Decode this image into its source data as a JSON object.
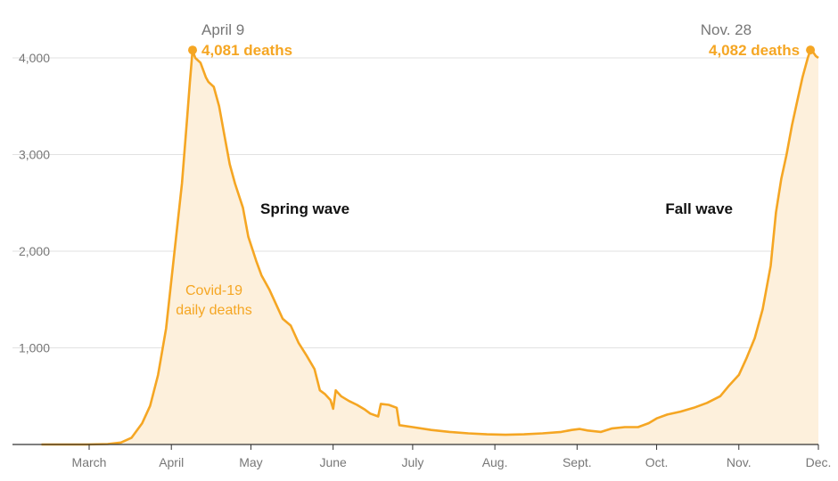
{
  "chart_data": {
    "type": "area",
    "title": "",
    "xlabel": "",
    "ylabel": "",
    "ylim": [
      0,
      4300
    ],
    "grid": true,
    "colors": {
      "line": "#f5a623",
      "fill": "#fdf0dc",
      "baseline": "#333333"
    },
    "y_ticks": [
      {
        "value": 1000,
        "label": "1,000"
      },
      {
        "value": 2000,
        "label": "2,000"
      },
      {
        "value": 3000,
        "label": "3,000"
      },
      {
        "value": 4000,
        "label": "4,000"
      }
    ],
    "x_ticks": [
      {
        "date": "2020-03-01",
        "label": "March"
      },
      {
        "date": "2020-04-01",
        "label": "April"
      },
      {
        "date": "2020-05-01",
        "label": "May"
      },
      {
        "date": "2020-06-01",
        "label": "June"
      },
      {
        "date": "2020-07-01",
        "label": "July"
      },
      {
        "date": "2020-08-01",
        "label": "Aug."
      },
      {
        "date": "2020-09-01",
        "label": "Sept."
      },
      {
        "date": "2020-10-01",
        "label": "Oct."
      },
      {
        "date": "2020-11-01",
        "label": "Nov."
      },
      {
        "date": "2020-12-01",
        "label": "Dec."
      }
    ],
    "series": [
      {
        "name": "Covid-19 daily deaths",
        "points": [
          [
            "2020-02-12",
            0
          ],
          [
            "2020-02-29",
            0
          ],
          [
            "2020-03-08",
            5
          ],
          [
            "2020-03-13",
            20
          ],
          [
            "2020-03-17",
            70
          ],
          [
            "2020-03-21",
            220
          ],
          [
            "2020-03-24",
            400
          ],
          [
            "2020-03-27",
            720
          ],
          [
            "2020-03-30",
            1200
          ],
          [
            "2020-04-02",
            1950
          ],
          [
            "2020-04-05",
            2700
          ],
          [
            "2020-04-07",
            3400
          ],
          [
            "2020-04-08",
            3750
          ],
          [
            "2020-04-09",
            4081
          ],
          [
            "2020-04-10",
            4000
          ],
          [
            "2020-04-12",
            3950
          ],
          [
            "2020-04-14",
            3800
          ],
          [
            "2020-04-15",
            3750
          ],
          [
            "2020-04-17",
            3700
          ],
          [
            "2020-04-19",
            3500
          ],
          [
            "2020-04-21",
            3200
          ],
          [
            "2020-04-23",
            2900
          ],
          [
            "2020-04-25",
            2700
          ],
          [
            "2020-04-28",
            2450
          ],
          [
            "2020-04-30",
            2150
          ],
          [
            "2020-05-03",
            1900
          ],
          [
            "2020-05-05",
            1750
          ],
          [
            "2020-05-08",
            1600
          ],
          [
            "2020-05-11",
            1420
          ],
          [
            "2020-05-13",
            1300
          ],
          [
            "2020-05-16",
            1230
          ],
          [
            "2020-05-19",
            1050
          ],
          [
            "2020-05-22",
            920
          ],
          [
            "2020-05-25",
            780
          ],
          [
            "2020-05-27",
            560
          ],
          [
            "2020-05-29",
            520
          ],
          [
            "2020-05-31",
            460
          ],
          [
            "2020-06-01",
            370
          ],
          [
            "2020-06-02",
            560
          ],
          [
            "2020-06-04",
            500
          ],
          [
            "2020-06-07",
            450
          ],
          [
            "2020-06-10",
            410
          ],
          [
            "2020-06-13",
            360
          ],
          [
            "2020-06-15",
            320
          ],
          [
            "2020-06-18",
            290
          ],
          [
            "2020-06-19",
            420
          ],
          [
            "2020-06-22",
            410
          ],
          [
            "2020-06-25",
            380
          ],
          [
            "2020-06-26",
            200
          ],
          [
            "2020-07-01",
            180
          ],
          [
            "2020-07-08",
            150
          ],
          [
            "2020-07-15",
            130
          ],
          [
            "2020-07-22",
            115
          ],
          [
            "2020-07-29",
            105
          ],
          [
            "2020-08-05",
            100
          ],
          [
            "2020-08-12",
            105
          ],
          [
            "2020-08-19",
            115
          ],
          [
            "2020-08-26",
            130
          ],
          [
            "2020-08-30",
            150
          ],
          [
            "2020-09-02",
            160
          ],
          [
            "2020-09-05",
            145
          ],
          [
            "2020-09-10",
            130
          ],
          [
            "2020-09-14",
            165
          ],
          [
            "2020-09-19",
            180
          ],
          [
            "2020-09-24",
            180
          ],
          [
            "2020-09-28",
            220
          ],
          [
            "2020-10-01",
            270
          ],
          [
            "2020-10-05",
            310
          ],
          [
            "2020-10-10",
            340
          ],
          [
            "2020-10-15",
            380
          ],
          [
            "2020-10-20",
            430
          ],
          [
            "2020-10-25",
            500
          ],
          [
            "2020-10-28",
            600
          ],
          [
            "2020-11-01",
            720
          ],
          [
            "2020-11-04",
            900
          ],
          [
            "2020-11-07",
            1100
          ],
          [
            "2020-11-10",
            1400
          ],
          [
            "2020-11-13",
            1850
          ],
          [
            "2020-11-15",
            2400
          ],
          [
            "2020-11-17",
            2750
          ],
          [
            "2020-11-19",
            3000
          ],
          [
            "2020-11-21",
            3300
          ],
          [
            "2020-11-23",
            3550
          ],
          [
            "2020-11-25",
            3800
          ],
          [
            "2020-11-27",
            4000
          ],
          [
            "2020-11-28",
            4082
          ],
          [
            "2020-11-29",
            4060
          ],
          [
            "2020-11-30",
            4020
          ],
          [
            "2020-12-01",
            4000
          ]
        ]
      }
    ],
    "annotations": {
      "peak_spring": {
        "date": "2020-04-09",
        "value": 4081,
        "date_label": "April 9",
        "value_label": "4,081 deaths"
      },
      "peak_fall": {
        "date": "2020-11-28",
        "value": 4082,
        "date_label": "Nov. 28",
        "value_label": "4,082 deaths"
      },
      "spring_wave_label": "Spring wave",
      "fall_wave_label": "Fall wave",
      "series_label_line1": "Covid-19",
      "series_label_line2": "daily deaths"
    }
  }
}
